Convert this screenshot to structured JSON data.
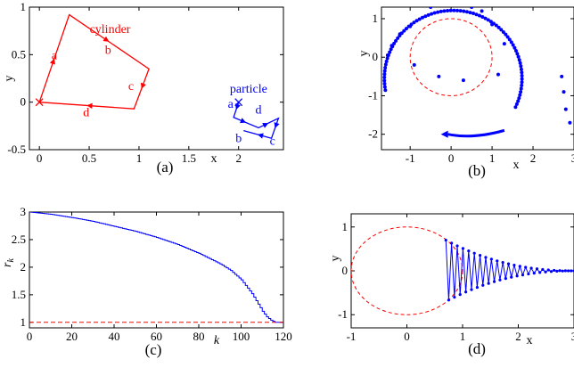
{
  "colors": {
    "cylinder": "#ff0000",
    "particle": "#0000ff",
    "axis": "#000000",
    "reference": "#ff0000"
  },
  "chart_data": [
    {
      "panel": "(a)",
      "type": "line",
      "xlabel": "x",
      "ylabel": "y",
      "xlim": [
        -0.1,
        2.45
      ],
      "ylim": [
        -0.5,
        1.0
      ],
      "xticks": [
        0,
        0.5,
        1,
        1.5,
        2
      ],
      "yticks": [
        -0.5,
        0,
        0.5,
        1
      ],
      "xtick_labels": [
        "0",
        "0.5",
        "1",
        "1.5",
        "2"
      ],
      "ytick_labels": [
        "-0.5",
        "0",
        "0.5",
        "1"
      ],
      "series": [
        {
          "name": "cylinder",
          "points": [
            [
              0,
              0
            ],
            [
              0.3,
              0.92
            ],
            [
              1.1,
              0.35
            ],
            [
              0.95,
              -0.07
            ],
            [
              0,
              0
            ]
          ]
        },
        {
          "name": "particle",
          "points": [
            [
              2,
              0
            ],
            [
              1.95,
              -0.16
            ],
            [
              2.2,
              -0.27
            ],
            [
              2.4,
              -0.17
            ],
            [
              2.33,
              -0.38
            ],
            [
              2.05,
              -0.3
            ]
          ]
        }
      ],
      "annotations": [
        {
          "text": "cylinder",
          "x": 0.71,
          "y": 0.73,
          "series": "cylinder"
        },
        {
          "text": "a",
          "x": 0.15,
          "y": 0.45,
          "series": "cylinder"
        },
        {
          "text": "b",
          "x": 0.69,
          "y": 0.51,
          "series": "cylinder"
        },
        {
          "text": "c",
          "x": 0.92,
          "y": 0.13,
          "series": "cylinder"
        },
        {
          "text": "d",
          "x": 0.47,
          "y": -0.15,
          "series": "cylinder"
        },
        {
          "text": "particle",
          "x": 2.1,
          "y": 0.1,
          "series": "particle"
        },
        {
          "text": "a",
          "x": 1.92,
          "y": -0.06,
          "series": "particle"
        },
        {
          "text": "d",
          "x": 2.2,
          "y": -0.12,
          "series": "particle"
        },
        {
          "text": "b",
          "x": 2.0,
          "y": -0.42,
          "series": "particle"
        },
        {
          "text": "c",
          "x": 2.34,
          "y": -0.45,
          "series": "particle"
        }
      ],
      "caption": "(a)"
    },
    {
      "panel": "(b)",
      "type": "scatter",
      "xlabel": "x",
      "ylabel": "y",
      "xlim": [
        -1.7,
        3.0
      ],
      "ylim": [
        -2.4,
        1.3
      ],
      "xticks": [
        -1,
        0,
        1,
        2,
        3
      ],
      "yticks": [
        -2,
        -1,
        0,
        1
      ],
      "xtick_labels": [
        "-1",
        "0",
        "1",
        "2",
        "3"
      ],
      "ytick_labels": [
        "-2",
        "-1",
        "0",
        "1"
      ],
      "unit_circle": {
        "center": [
          0,
          0
        ],
        "radius": 1
      },
      "series": [
        {
          "name": "",
          "points": [
            [
              -0.5,
              1.3
            ],
            [
              0,
              1.35
            ],
            [
              0.5,
              1.3
            ],
            [
              0.75,
              1.2
            ],
            [
              1.0,
              0.85
            ],
            [
              -1.0,
              0.8
            ],
            [
              -1.25,
              0.6
            ],
            [
              -1.45,
              0.3
            ],
            [
              -1.55,
              0.05
            ],
            [
              1.3,
              0.35
            ],
            [
              1.15,
              -0.45
            ],
            [
              -0.9,
              -0.2
            ],
            [
              -0.3,
              -0.5
            ],
            [
              0.3,
              -0.6
            ]
          ]
        },
        {
          "name": "",
          "points": [
            [
              2.7,
              -0.5
            ],
            [
              2.75,
              -0.9
            ],
            [
              2.8,
              -1.35
            ],
            [
              2.9,
              -1.7
            ]
          ]
        }
      ],
      "spiral": {
        "r_outer": 2.3,
        "r_inner": 1.55,
        "theta_start_deg": 190,
        "theta_end_deg": -25
      },
      "caption": "(b)"
    },
    {
      "panel": "(c)",
      "type": "line",
      "xlabel": "k",
      "ylabel": "r_k",
      "xlim": [
        0,
        120
      ],
      "ylim": [
        0.9,
        3.0
      ],
      "xticks": [
        0,
        20,
        40,
        60,
        80,
        100,
        120
      ],
      "yticks": [
        1,
        1.5,
        2,
        2.5,
        3
      ],
      "xtick_labels": [
        "0",
        "20",
        "40",
        "60",
        "80",
        "100",
        "120"
      ],
      "ytick_labels": [
        "1",
        "1.5",
        "2",
        "2.5",
        "3"
      ],
      "series": [
        {
          "name": "",
          "x": [
            0,
            10,
            20,
            30,
            40,
            50,
            60,
            70,
            80,
            90,
            95,
            100,
            105,
            108,
            110,
            112,
            114,
            116,
            118,
            120
          ],
          "y": [
            3.0,
            2.96,
            2.9,
            2.83,
            2.74,
            2.65,
            2.54,
            2.41,
            2.25,
            2.06,
            1.94,
            1.77,
            1.52,
            1.33,
            1.2,
            1.1,
            1.04,
            1.0,
            1.0,
            1.0
          ]
        }
      ],
      "reference_line": {
        "y": 1.0
      },
      "caption": "(c)"
    },
    {
      "panel": "(d)",
      "type": "line",
      "xlabel": "x",
      "ylabel": "y",
      "xlim": [
        -1,
        3.0
      ],
      "ylim": [
        -1.3,
        1.3
      ],
      "xticks": [
        -1,
        0,
        1,
        2,
        3
      ],
      "yticks": [
        -1,
        0,
        1
      ],
      "xtick_labels": [
        "-1",
        "0",
        "1",
        "2",
        "3"
      ],
      "ytick_labels": [
        "-1",
        "0",
        "1"
      ],
      "unit_circle": {
        "center": [
          0,
          0
        ],
        "radius": 1
      },
      "series": [
        {
          "name": "",
          "x_start": 0.7,
          "x_end": 3.0,
          "amp_start": 0.7,
          "amp_end": 0.0,
          "points_count": 46
        }
      ],
      "caption": "(d)"
    }
  ]
}
